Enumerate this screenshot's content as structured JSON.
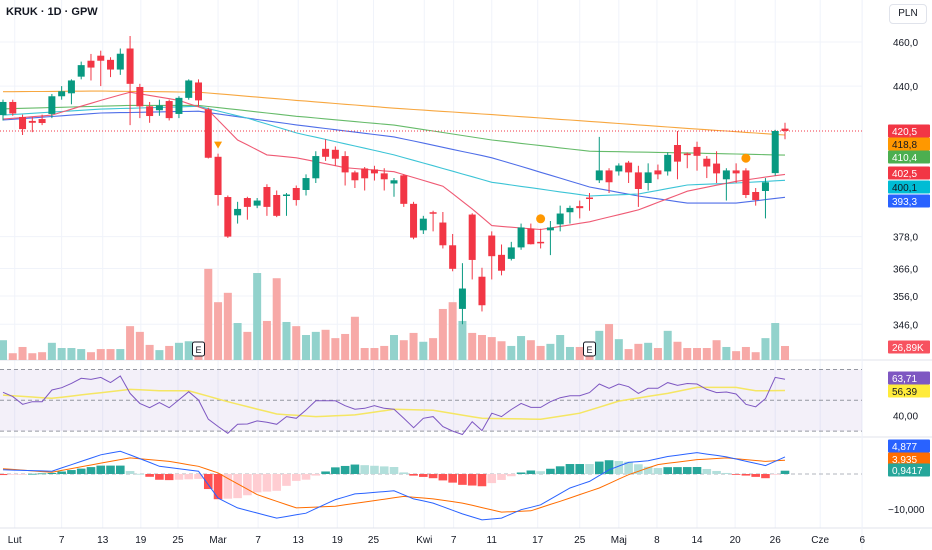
{
  "header": {
    "symbol_title": "KRUK · 1D · GPW",
    "currency": "PLN"
  },
  "colors": {
    "up": "#089981",
    "down": "#f23645",
    "vol_up": "#92d2cc",
    "vol_down": "#f7a9a7",
    "ma_orange": "#f7a740",
    "ma_green": "#66bb6a",
    "ma_blue": "#4f6ee8",
    "ma_cyan": "#3cc4d6",
    "ma_red": "#ef5a74",
    "rsi": "#7e57c2",
    "rsi_ma": "#f5e663",
    "macd": "#2962ff",
    "signal": "#ff6d00"
  },
  "price_axis": {
    "labels": [
      {
        "value": 460,
        "text": "460,0"
      },
      {
        "value": 440,
        "text": "440,0"
      },
      {
        "value": 378,
        "text": "378,0"
      },
      {
        "value": 366,
        "text": "366,0"
      },
      {
        "value": 356,
        "text": "356,0"
      },
      {
        "value": 346,
        "text": "346,0"
      }
    ]
  },
  "badges": [
    {
      "text": "420,5",
      "color": "#f23645",
      "fg": "#fff"
    },
    {
      "text": "418,8",
      "color": "#ff9800",
      "fg": "#131722"
    },
    {
      "text": "410,4",
      "color": "#4caf50",
      "fg": "#fff"
    },
    {
      "text": "402,5",
      "color": "#f23645",
      "fg": "#fff"
    },
    {
      "text": "400,1",
      "color": "#00bcd4",
      "fg": "#131722"
    },
    {
      "text": "393,3",
      "color": "#2962ff",
      "fg": "#fff"
    },
    {
      "text": "26,89K",
      "color": "#f7525f",
      "fg": "#fff"
    },
    {
      "text": "63,71",
      "color": "#7e57c2",
      "fg": "#fff"
    },
    {
      "text": "56,39",
      "color": "#ffeb3b",
      "fg": "#131722"
    },
    {
      "text": "4,877",
      "color": "#2962ff",
      "fg": "#fff"
    },
    {
      "text": "3,935",
      "color": "#ff6d00",
      "fg": "#fff"
    },
    {
      "text": "0,9417",
      "color": "#26a69a",
      "fg": "#fff"
    }
  ],
  "rsi_axis": {
    "label": "40,00",
    "value": 40
  },
  "macd_axis": {
    "label": "−10,000",
    "value": -10
  },
  "time_axis": [
    {
      "text": "Lut",
      "bar": 1.2
    },
    {
      "text": "7",
      "bar": 6
    },
    {
      "text": "13",
      "bar": 10.2
    },
    {
      "text": "19",
      "bar": 14.1
    },
    {
      "text": "25",
      "bar": 17.9
    },
    {
      "text": "Mar",
      "bar": 22
    },
    {
      "text": "7",
      "bar": 26.1
    },
    {
      "text": "13",
      "bar": 30.2
    },
    {
      "text": "19",
      "bar": 34.2
    },
    {
      "text": "25",
      "bar": 37.9
    },
    {
      "text": "Kwi",
      "bar": 43.1
    },
    {
      "text": "7",
      "bar": 46.1
    },
    {
      "text": "11",
      "bar": 50
    },
    {
      "text": "17",
      "bar": 54.7
    },
    {
      "text": "25",
      "bar": 59
    },
    {
      "text": "Maj",
      "bar": 63
    },
    {
      "text": "8",
      "bar": 66.9
    },
    {
      "text": "14",
      "bar": 71
    },
    {
      "text": "20",
      "bar": 74.9
    },
    {
      "text": "26",
      "bar": 79
    },
    {
      "text": "Cze",
      "bar": 83.6
    },
    {
      "text": "6",
      "bar": 87.9
    }
  ],
  "events": {
    "earnings_label": "E",
    "earnings_bars": [
      20,
      60
    ],
    "dividend_bars": [
      55,
      76
    ],
    "split_bars": [
      22
    ]
  },
  "last_price": 420.5,
  "chart_data": {
    "type": "candlestick",
    "ohlc": [
      [
        427.3,
        434,
        425,
        433.0
      ],
      [
        433,
        434,
        427,
        428
      ],
      [
        426.5,
        427.5,
        418.8,
        421.3
      ],
      [
        424.8,
        426.5,
        420,
        424
      ],
      [
        425.6,
        427.5,
        423,
        423.9
      ],
      [
        427.8,
        436.5,
        426,
        435.5
      ],
      [
        435.5,
        440,
        434,
        437.7
      ],
      [
        436.8,
        443,
        432,
        442.5
      ],
      [
        444.2,
        451,
        443,
        449.4
      ],
      [
        451.4,
        454.5,
        442.5,
        448.3
      ],
      [
        453.7,
        456,
        440,
        451.4
      ],
      [
        451.8,
        453,
        444,
        447.4
      ],
      [
        447.4,
        457,
        445,
        454.6
      ],
      [
        457,
        462.8,
        423,
        441
      ],
      [
        439.6,
        441,
        426,
        431.1
      ],
      [
        431.1,
        433,
        424,
        426.9
      ],
      [
        429.4,
        434,
        427,
        431.5
      ],
      [
        433.4,
        434,
        425,
        426
      ],
      [
        427.8,
        435.5,
        426,
        434.8
      ],
      [
        434.8,
        443,
        434,
        442.5
      ],
      [
        441.6,
        443,
        431,
        433.7
      ],
      [
        429.8,
        430.5,
        409,
        409.3
      ],
      [
        409.7,
        411,
        390,
        394.2
      ],
      [
        393.4,
        394,
        377.5,
        378
      ],
      [
        386.2,
        391.5,
        383,
        388.7
      ],
      [
        393,
        393.5,
        384.5,
        389.5
      ],
      [
        390,
        393,
        389,
        392
      ],
      [
        397.4,
        398.5,
        386,
        389.5
      ],
      [
        394.2,
        396,
        385.5,
        386
      ],
      [
        394,
        395,
        386,
        394.4
      ],
      [
        397,
        398,
        390,
        392.2
      ],
      [
        396.2,
        402.5,
        394,
        401
      ],
      [
        400.9,
        412,
        399,
        410
      ],
      [
        413,
        417,
        408,
        409.7
      ],
      [
        412.6,
        414,
        406,
        408.9
      ],
      [
        410,
        412,
        398,
        403.3
      ],
      [
        403.3,
        404,
        397,
        400.1
      ],
      [
        404.9,
        405.5,
        396,
        400.9
      ],
      [
        404.5,
        406,
        400,
        402.9
      ],
      [
        402.9,
        405,
        396,
        400.5
      ],
      [
        398.8,
        401,
        393.5,
        400.1
      ],
      [
        402.1,
        402.5,
        389.5,
        390.7
      ],
      [
        390.7,
        391.5,
        377,
        377.6
      ],
      [
        380.4,
        386,
        379,
        384.9
      ],
      [
        387.4,
        388,
        380,
        386.9
      ],
      [
        383.4,
        387.5,
        373.5,
        374.7
      ],
      [
        374.7,
        379,
        365,
        365.9
      ],
      [
        351.4,
        368,
        346,
        358.7
      ],
      [
        386.5,
        387,
        362,
        369.2
      ],
      [
        363,
        366.3,
        350.5,
        352.7
      ],
      [
        378.4,
        380,
        362,
        370.6
      ],
      [
        371.1,
        375,
        363.5,
        365.2
      ],
      [
        369.6,
        376,
        369,
        373.9
      ],
      [
        373.9,
        383,
        373,
        381.5
      ],
      [
        381.1,
        383,
        375,
        375.1
      ],
      [
        376,
        381,
        373.5,
        375.6
      ],
      [
        380.4,
        384,
        371,
        381.5
      ],
      [
        382.7,
        390,
        380,
        386.9
      ],
      [
        387.4,
        390,
        383,
        389.1
      ],
      [
        389.8,
        392,
        385,
        389.0
      ],
      [
        393.2,
        395,
        388,
        392.9
      ],
      [
        400.1,
        418,
        399,
        404.1
      ],
      [
        404.1,
        405,
        395,
        399.3
      ],
      [
        403.7,
        407,
        402,
        406.1
      ],
      [
        407.3,
        408,
        399,
        403.3
      ],
      [
        403.3,
        406,
        389.5,
        396.6
      ],
      [
        399,
        407,
        396,
        403.3
      ],
      [
        404.1,
        406.5,
        400.5,
        402.5
      ],
      [
        403.7,
        411.5,
        402,
        410.5
      ],
      [
        414.6,
        420.5,
        400.5,
        407.7
      ],
      [
        411,
        411.5,
        405,
        410.5
      ],
      [
        413.8,
        416,
        404,
        410.1
      ],
      [
        408.9,
        410,
        401,
        405.7
      ],
      [
        406.9,
        412,
        399,
        402.9
      ],
      [
        400.5,
        405,
        392,
        404.1
      ],
      [
        404.1,
        407,
        399,
        402.9
      ],
      [
        404.1,
        405,
        393,
        394.2
      ],
      [
        395.4,
        397,
        390,
        392.2
      ],
      [
        395.8,
        401,
        385,
        399.3
      ],
      [
        403,
        421,
        402,
        420.5
      ],
      [
        421.5,
        424,
        417,
        420.5
      ]
    ],
    "volume_k": [
      38,
      13,
      25,
      13,
      15,
      33,
      23,
      23,
      21,
      15,
      21,
      21,
      21,
      65,
      54,
      29,
      19,
      27,
      33,
      36,
      15,
      175,
      111,
      129,
      71,
      54,
      167,
      75,
      157,
      73,
      65,
      48,
      54,
      58,
      42,
      50,
      83,
      23,
      23,
      27,
      48,
      38,
      52,
      35,
      42,
      98,
      111,
      75,
      52,
      48,
      44,
      36,
      27,
      46,
      38,
      27,
      31,
      48,
      25,
      25,
      25,
      56,
      69,
      40,
      21,
      31,
      33,
      23,
      56,
      35,
      23,
      23,
      23,
      38,
      25,
      17,
      25,
      15,
      42,
      71,
      26.89
    ],
    "moving_averages": [
      {
        "name": "ma_orange",
        "points": [
          [
            0,
            437.5
          ],
          [
            10,
            437.8
          ],
          [
            20,
            437.3
          ],
          [
            30,
            433.7
          ],
          [
            40,
            430.3
          ],
          [
            50,
            427.5
          ],
          [
            60,
            424.6
          ],
          [
            70,
            421.6
          ],
          [
            80,
            418.8
          ]
        ]
      },
      {
        "name": "ma_green",
        "points": [
          [
            0,
            430
          ],
          [
            13,
            431.5
          ],
          [
            20,
            431.5
          ],
          [
            30,
            426.8
          ],
          [
            40,
            423
          ],
          [
            50,
            416.7
          ],
          [
            60,
            412
          ],
          [
            70,
            411.3
          ],
          [
            80,
            410.4
          ]
        ]
      },
      {
        "name": "ma_blue",
        "points": [
          [
            0,
            425.2
          ],
          [
            10,
            428.2
          ],
          [
            20,
            429
          ],
          [
            25,
            426
          ],
          [
            30,
            423.1
          ],
          [
            40,
            418
          ],
          [
            50,
            409.3
          ],
          [
            60,
            397.4
          ],
          [
            65,
            393.8
          ],
          [
            70,
            391
          ],
          [
            75,
            391
          ],
          [
            80,
            393.3
          ]
        ]
      },
      {
        "name": "ma_cyan",
        "points": [
          [
            0,
            427.3
          ],
          [
            10,
            429.9
          ],
          [
            20,
            431.1
          ],
          [
            25,
            426
          ],
          [
            30,
            419.7
          ],
          [
            40,
            410.5
          ],
          [
            50,
            399.3
          ],
          [
            60,
            393.8
          ],
          [
            65,
            394.6
          ],
          [
            70,
            398.2
          ],
          [
            75,
            399
          ],
          [
            80,
            400.1
          ]
        ]
      },
      {
        "name": "ma_red",
        "points": [
          [
            0,
            425.6
          ],
          [
            5,
            427.3
          ],
          [
            10,
            433.7
          ],
          [
            13,
            437.3
          ],
          [
            18,
            433.7
          ],
          [
            21,
            429.4
          ],
          [
            24,
            416.7
          ],
          [
            27,
            410.5
          ],
          [
            30,
            409.3
          ],
          [
            35,
            405.2
          ],
          [
            40,
            403.6
          ],
          [
            45,
            397.7
          ],
          [
            48,
            388.7
          ],
          [
            50,
            382.2
          ],
          [
            55,
            380.7
          ],
          [
            60,
            383.7
          ],
          [
            65,
            388.3
          ],
          [
            70,
            395.7
          ],
          [
            75,
            399.7
          ],
          [
            80,
            402.5
          ]
        ]
      }
    ],
    "rsi": [
      55.2,
      52.4,
      47.4,
      49.1,
      49.1,
      56.7,
      58.2,
      61,
      64.3,
      63.6,
      64.9,
      61.5,
      65.8,
      54.5,
      48,
      45.2,
      48.5,
      45.2,
      50.4,
      55.6,
      50.2,
      37.7,
      33,
      28.6,
      34.4,
      34.6,
      36.6,
      35.7,
      34.4,
      39.4,
      38.3,
      43.7,
      49.7,
      49.7,
      49.7,
      46.5,
      44.2,
      44.8,
      46.5,
      44.8,
      44.2,
      38.3,
      32.2,
      38.3,
      39.4,
      32.9,
      30,
      27.8,
      36.1,
      30.3,
      41.6,
      39.4,
      44,
      48,
      45.4,
      45.4,
      49.1,
      51.7,
      53,
      53,
      55,
      60.6,
      57.8,
      60.6,
      58.8,
      54.5,
      57.8,
      57.8,
      61.5,
      59.7,
      60.9,
      60.6,
      57.1,
      55,
      55.4,
      54.1,
      47.4,
      45.8,
      51.1,
      64.9,
      63.71
    ],
    "rsi_ma": [
      [
        0,
        53.4
      ],
      [
        5,
        51.3
      ],
      [
        13,
        57.1
      ],
      [
        16,
        56.2
      ],
      [
        19,
        56.2
      ],
      [
        23,
        49.1
      ],
      [
        28,
        41.1
      ],
      [
        32,
        39.4
      ],
      [
        36,
        40.5
      ],
      [
        40,
        44.2
      ],
      [
        44,
        43.5
      ],
      [
        49,
        38.3
      ],
      [
        55,
        37.7
      ],
      [
        59,
        41.6
      ],
      [
        63,
        49.5
      ],
      [
        68,
        54.5
      ],
      [
        71,
        58.4
      ],
      [
        75,
        58.4
      ],
      [
        77,
        56.2
      ],
      [
        80,
        56.39
      ]
    ],
    "rsi_bands": [
      70,
      50,
      30
    ],
    "macd": [
      [
        0,
        1.2
      ],
      [
        5,
        0.8
      ],
      [
        8,
        3.6
      ],
      [
        10,
        5.5
      ],
      [
        12,
        6.5
      ],
      [
        14,
        4.4
      ],
      [
        16,
        2.2
      ],
      [
        18,
        1.5
      ],
      [
        20,
        0.8
      ],
      [
        22,
        -6.9
      ],
      [
        24,
        -9.7
      ],
      [
        28,
        -12.6
      ],
      [
        31,
        -11.2
      ],
      [
        34,
        -7.3
      ],
      [
        36,
        -5.7
      ],
      [
        40,
        -4.8
      ],
      [
        42,
        -7.1
      ],
      [
        44,
        -8.3
      ],
      [
        47,
        -11.4
      ],
      [
        49,
        -13.1
      ],
      [
        51,
        -12.6
      ],
      [
        53,
        -10.2
      ],
      [
        55,
        -8.8
      ],
      [
        58,
        -4
      ],
      [
        60,
        -2.1
      ],
      [
        62,
        1.2
      ],
      [
        64,
        3.3
      ],
      [
        66,
        3.8
      ],
      [
        68,
        5.0
      ],
      [
        71,
        6.1
      ],
      [
        74,
        4.9
      ],
      [
        78,
        2.4
      ],
      [
        80,
        4.877
      ]
    ],
    "signal": [
      [
        0,
        1.5
      ],
      [
        5,
        0.5
      ],
      [
        10,
        3.1
      ],
      [
        13,
        4.6
      ],
      [
        17,
        3.6
      ],
      [
        20,
        2.2
      ],
      [
        22,
        0.3
      ],
      [
        26,
        -5.9
      ],
      [
        30,
        -9.7
      ],
      [
        34,
        -9.2
      ],
      [
        41,
        -6.4
      ],
      [
        44,
        -7.1
      ],
      [
        47,
        -8.3
      ],
      [
        51,
        -10.9
      ],
      [
        54,
        -10.5
      ],
      [
        57,
        -7.8
      ],
      [
        61,
        -4
      ],
      [
        64,
        -0.2
      ],
      [
        67,
        2.7
      ],
      [
        71,
        4.1
      ],
      [
        74,
        4.6
      ],
      [
        78,
        3.6
      ],
      [
        80,
        3.935
      ]
    ]
  }
}
